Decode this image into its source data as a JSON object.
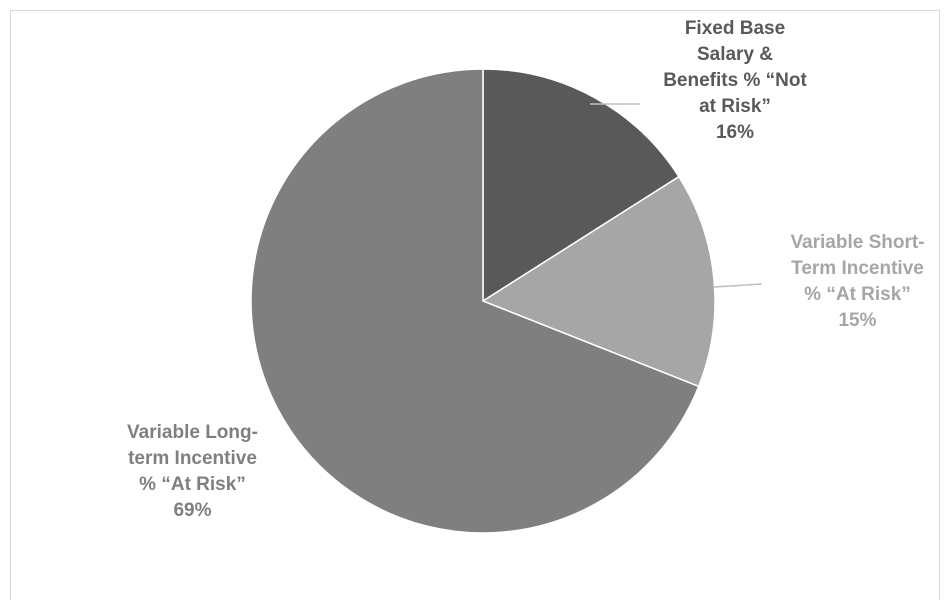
{
  "chart_data": {
    "type": "pie",
    "slices": [
      {
        "label": "Fixed Base Salary & Benefits % “Not at Risk”",
        "display_label": "Fixed Base\nSalary &\nBenefits % “Not\nat Risk”",
        "value": 16,
        "percent_label": "16%",
        "color": "#595959"
      },
      {
        "label": "Variable Short-Term Incentive % “At Risk”",
        "display_label": "Variable Short-\nTerm Incentive\n% “At Risk”",
        "value": 15,
        "percent_label": "15%",
        "color": "#a6a6a6"
      },
      {
        "label": "Variable Long-term Incentive % “At Risk”",
        "display_label": "Variable Long-\nterm Incentive\n% “At Risk”",
        "value": 69,
        "percent_label": "69%",
        "color": "#7f7f7f"
      }
    ],
    "start_angle": "12 o'clock",
    "direction": "clockwise",
    "legend": "none"
  }
}
